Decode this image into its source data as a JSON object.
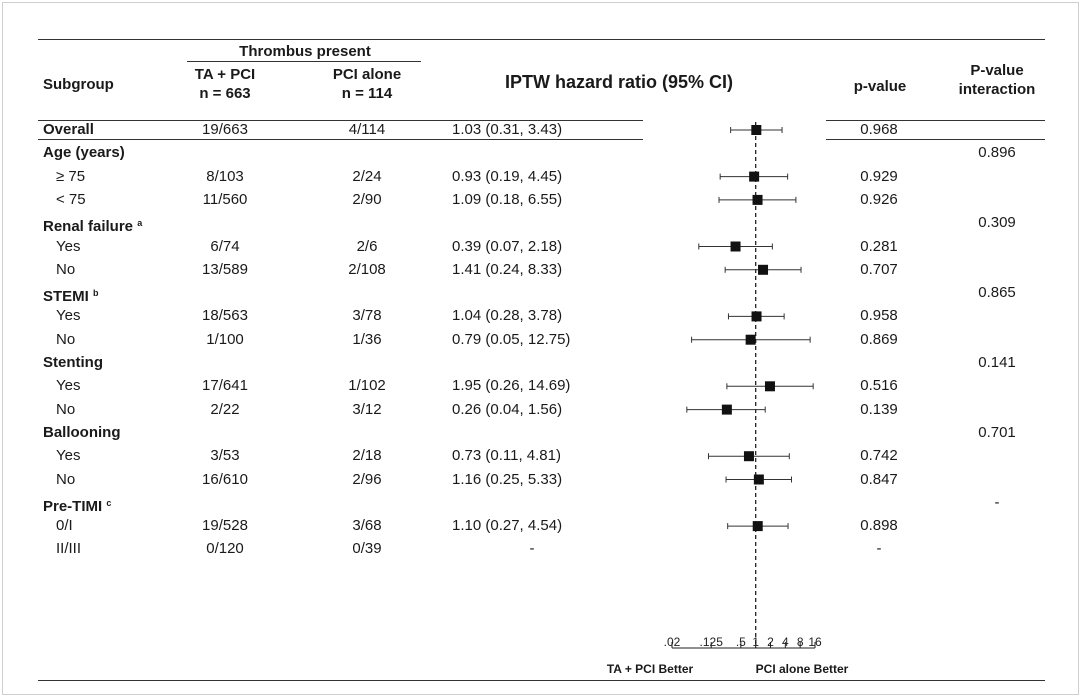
{
  "header": {
    "subgroup": "Subgroup",
    "thrombus": "Thrombus present",
    "ta_pci": "TA + PCI",
    "ta_pci_n": "n = 663",
    "pci_alone": "PCI alone",
    "pci_alone_n": "n = 114",
    "hr": "IPTW hazard ratio (95% CI)",
    "pvalue": "p-value",
    "pint_1": "P-value",
    "pint_2": "interaction"
  },
  "rows": [
    {
      "label": "Overall",
      "bold": true,
      "sup": "",
      "ta": "19/663",
      "pci": "4/114",
      "hr_text": "1.03 (0.31, 3.43)",
      "p": "0.968",
      "pint": ""
    },
    {
      "label": "Age (years)",
      "bold": true,
      "sup": "",
      "ta": "",
      "pci": "",
      "hr_text": "",
      "p": "",
      "pint": "0.896"
    },
    {
      "label": "≥ 75",
      "bold": false,
      "sup": "",
      "ta": "8/103",
      "pci": "2/24",
      "hr_text": "0.93 (0.19, 4.45)",
      "p": "0.929",
      "pint": ""
    },
    {
      "label": "< 75",
      "bold": false,
      "sup": "",
      "ta": "11/560",
      "pci": "2/90",
      "hr_text": "1.09 (0.18, 6.55)",
      "p": "0.926",
      "pint": ""
    },
    {
      "label": "Renal failure",
      "bold": true,
      "sup": "a",
      "ta": "",
      "pci": "",
      "hr_text": "",
      "p": "",
      "pint": "0.309"
    },
    {
      "label": "Yes",
      "bold": false,
      "sup": "",
      "ta": "6/74",
      "pci": "2/6",
      "hr_text": "0.39 (0.07, 2.18)",
      "p": "0.281",
      "pint": ""
    },
    {
      "label": "No",
      "bold": false,
      "sup": "",
      "ta": "13/589",
      "pci": "2/108",
      "hr_text": "1.41 (0.24, 8.33)",
      "p": "0.707",
      "pint": ""
    },
    {
      "label": "STEMI",
      "bold": true,
      "sup": "b",
      "ta": "",
      "pci": "",
      "hr_text": "",
      "p": "",
      "pint": "0.865"
    },
    {
      "label": "Yes",
      "bold": false,
      "sup": "",
      "ta": "18/563",
      "pci": "3/78",
      "hr_text": "1.04 (0.28, 3.78)",
      "p": "0.958",
      "pint": ""
    },
    {
      "label": "No",
      "bold": false,
      "sup": "",
      "ta": "1/100",
      "pci": "1/36",
      "hr_text": "0.79 (0.05, 12.75)",
      "p": "0.869",
      "pint": ""
    },
    {
      "label": "Stenting",
      "bold": true,
      "sup": "",
      "ta": "",
      "pci": "",
      "hr_text": "",
      "p": "",
      "pint": "0.141"
    },
    {
      "label": "Yes",
      "bold": false,
      "sup": "",
      "ta": "17/641",
      "pci": "1/102",
      "hr_text": "1.95 (0.26, 14.69)",
      "p": "0.516",
      "pint": ""
    },
    {
      "label": "No",
      "bold": false,
      "sup": "",
      "ta": "2/22",
      "pci": "3/12",
      "hr_text": "0.26 (0.04, 1.56)",
      "p": "0.139",
      "pint": ""
    },
    {
      "label": "Ballooning",
      "bold": true,
      "sup": "",
      "ta": "",
      "pci": "",
      "hr_text": "",
      "p": "",
      "pint": "0.701"
    },
    {
      "label": "Yes",
      "bold": false,
      "sup": "",
      "ta": "3/53",
      "pci": "2/18",
      "hr_text": "0.73 (0.11, 4.81)",
      "p": "0.742",
      "pint": ""
    },
    {
      "label": "No",
      "bold": false,
      "sup": "",
      "ta": "16/610",
      "pci": "2/96",
      "hr_text": "1.16 (0.25, 5.33)",
      "p": "0.847",
      "pint": ""
    },
    {
      "label": "Pre-TIMI",
      "bold": true,
      "sup": "c",
      "ta": "",
      "pci": "",
      "hr_text": "",
      "p": "",
      "pint": "-"
    },
    {
      "label": "0/I",
      "bold": false,
      "sup": "",
      "ta": "19/528",
      "pci": "3/68",
      "hr_text": "1.10 (0.27, 4.54)",
      "p": "0.898",
      "pint": ""
    },
    {
      "label": "II/III",
      "bold": false,
      "sup": "",
      "ta": "0/120",
      "pci": "0/39",
      "hr_text": "-",
      "p": "-",
      "pint": ""
    }
  ],
  "chart_data": {
    "type": "forest",
    "x_scale": "log",
    "x_ticks": [
      0.02,
      0.125,
      0.5,
      1,
      2,
      4,
      8,
      16
    ],
    "x_tick_labels": [
      ".02",
      ".125",
      ".5",
      "1",
      "2",
      "4",
      "8",
      "16"
    ],
    "reference_line": 1,
    "left_label": "TA + PCI Better",
    "right_label": "PCI alone Better",
    "points": [
      {
        "row": 0,
        "hr": 1.03,
        "lo": 0.31,
        "hi": 3.43
      },
      {
        "row": 2,
        "hr": 0.93,
        "lo": 0.19,
        "hi": 4.45
      },
      {
        "row": 3,
        "hr": 1.09,
        "lo": 0.18,
        "hi": 6.55
      },
      {
        "row": 5,
        "hr": 0.39,
        "lo": 0.07,
        "hi": 2.18
      },
      {
        "row": 6,
        "hr": 1.41,
        "lo": 0.24,
        "hi": 8.33
      },
      {
        "row": 8,
        "hr": 1.04,
        "lo": 0.28,
        "hi": 3.78
      },
      {
        "row": 9,
        "hr": 0.79,
        "lo": 0.05,
        "hi": 12.75
      },
      {
        "row": 11,
        "hr": 1.95,
        "lo": 0.26,
        "hi": 14.69
      },
      {
        "row": 12,
        "hr": 0.26,
        "lo": 0.04,
        "hi": 1.56
      },
      {
        "row": 14,
        "hr": 0.73,
        "lo": 0.11,
        "hi": 4.81
      },
      {
        "row": 15,
        "hr": 1.16,
        "lo": 0.25,
        "hi": 5.33
      },
      {
        "row": 17,
        "hr": 1.1,
        "lo": 0.27,
        "hi": 4.54
      }
    ]
  }
}
